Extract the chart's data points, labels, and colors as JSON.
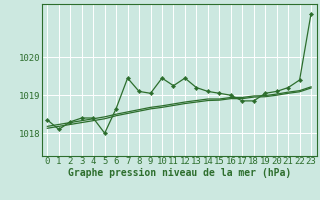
{
  "title": "Graphe pression niveau de la mer (hPa)",
  "background_color": "#cce8e0",
  "grid_color": "#b0d8d0",
  "line_color": "#2d6e2d",
  "xlim": [
    -0.5,
    23.5
  ],
  "ylim": [
    1017.4,
    1021.4
  ],
  "yticks": [
    1018,
    1019,
    1020
  ],
  "xticks": [
    0,
    1,
    2,
    3,
    4,
    5,
    6,
    7,
    8,
    9,
    10,
    11,
    12,
    13,
    14,
    15,
    16,
    17,
    18,
    19,
    20,
    21,
    22,
    23
  ],
  "xtick_labels": [
    "0",
    "1",
    "2",
    "3",
    "4",
    "5",
    "6",
    "7",
    "8",
    "9",
    "10",
    "11",
    "12",
    "13",
    "14",
    "15",
    "16",
    "17",
    "18",
    "19",
    "20",
    "21",
    "22",
    "23"
  ],
  "main_values": [
    1018.35,
    1018.1,
    1018.3,
    1018.4,
    1018.4,
    1018.0,
    1018.65,
    1019.45,
    1019.1,
    1019.05,
    1019.45,
    1019.25,
    1019.45,
    1019.2,
    1019.1,
    1019.05,
    1019.0,
    1018.85,
    1018.85,
    1019.05,
    1019.1,
    1019.2,
    1019.4,
    1021.15
  ],
  "trend1_values": [
    1018.18,
    1018.23,
    1018.28,
    1018.33,
    1018.38,
    1018.43,
    1018.5,
    1018.56,
    1018.62,
    1018.68,
    1018.72,
    1018.77,
    1018.82,
    1018.86,
    1018.9,
    1018.9,
    1018.94,
    1018.94,
    1018.98,
    1018.99,
    1019.03,
    1019.08,
    1019.12,
    1019.22
  ],
  "trend2_values": [
    1018.13,
    1018.18,
    1018.23,
    1018.28,
    1018.33,
    1018.38,
    1018.46,
    1018.52,
    1018.58,
    1018.64,
    1018.68,
    1018.73,
    1018.78,
    1018.82,
    1018.86,
    1018.87,
    1018.91,
    1018.91,
    1018.95,
    1018.96,
    1019.0,
    1019.05,
    1019.09,
    1019.19
  ],
  "tick_fontsize": 6.5,
  "title_fontsize": 7.0
}
